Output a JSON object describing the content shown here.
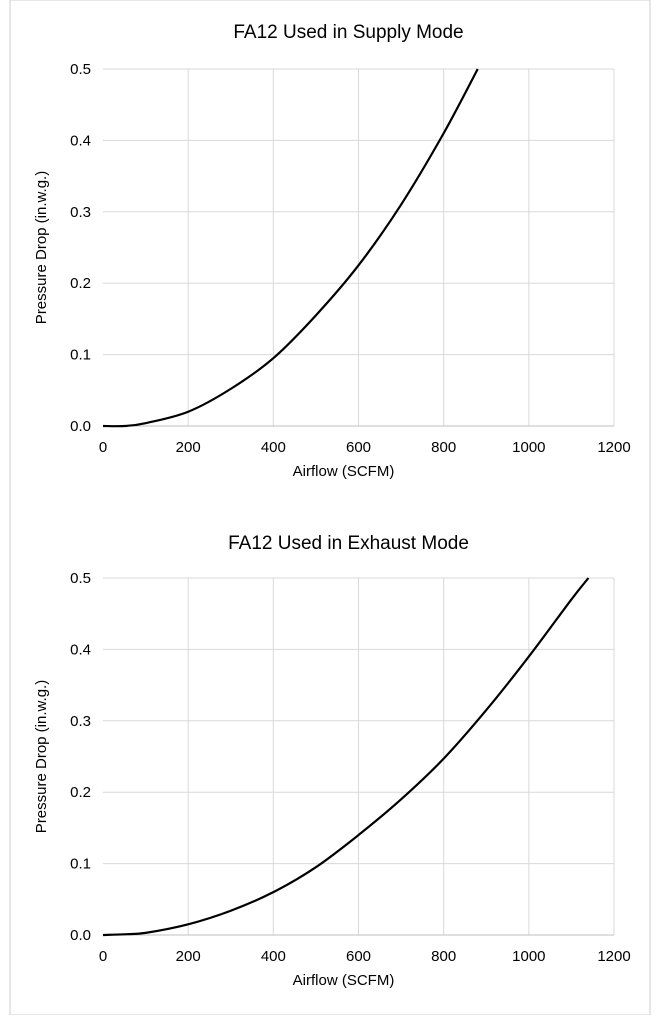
{
  "chart_data": [
    {
      "type": "line",
      "title": "FA12 Used in Supply Mode",
      "xlabel": "Airflow (SCFM)",
      "ylabel": "Pressure Drop (in.w.g.)",
      "xlim": [
        0,
        1200
      ],
      "ylim": [
        0,
        0.5
      ],
      "xticks": [
        "0",
        "200",
        "400",
        "600",
        "800",
        "1000",
        "1200"
      ],
      "yticks": [
        "0.0",
        "0.1",
        "0.2",
        "0.3",
        "0.4",
        "0.5"
      ],
      "grid": true,
      "line_color": "#000000",
      "series": [
        {
          "x": [
            0,
            50,
            100,
            200,
            300,
            400,
            500,
            600,
            700,
            800,
            880
          ],
          "values": [
            0,
            0,
            0.004,
            0.02,
            0.052,
            0.095,
            0.155,
            0.225,
            0.31,
            0.41,
            0.5
          ]
        }
      ]
    },
    {
      "type": "line",
      "title": "FA12 Used in Exhaust Mode",
      "xlabel": "Airflow (SCFM)",
      "ylabel": "Pressure Drop (in.w.g.)",
      "xlim": [
        0,
        1200
      ],
      "ylim": [
        0,
        0.5
      ],
      "xticks": [
        "0",
        "200",
        "400",
        "600",
        "800",
        "1000",
        "1200"
      ],
      "yticks": [
        "0.0",
        "0.1",
        "0.2",
        "0.3",
        "0.4",
        "0.5"
      ],
      "grid": true,
      "line_color": "#000000",
      "series": [
        {
          "x": [
            0,
            50,
            100,
            200,
            300,
            400,
            500,
            600,
            700,
            800,
            900,
            1000,
            1100,
            1140
          ],
          "values": [
            0,
            0.001,
            0.003,
            0.015,
            0.034,
            0.06,
            0.095,
            0.14,
            0.19,
            0.247,
            0.315,
            0.39,
            0.47,
            0.5
          ]
        }
      ]
    }
  ]
}
